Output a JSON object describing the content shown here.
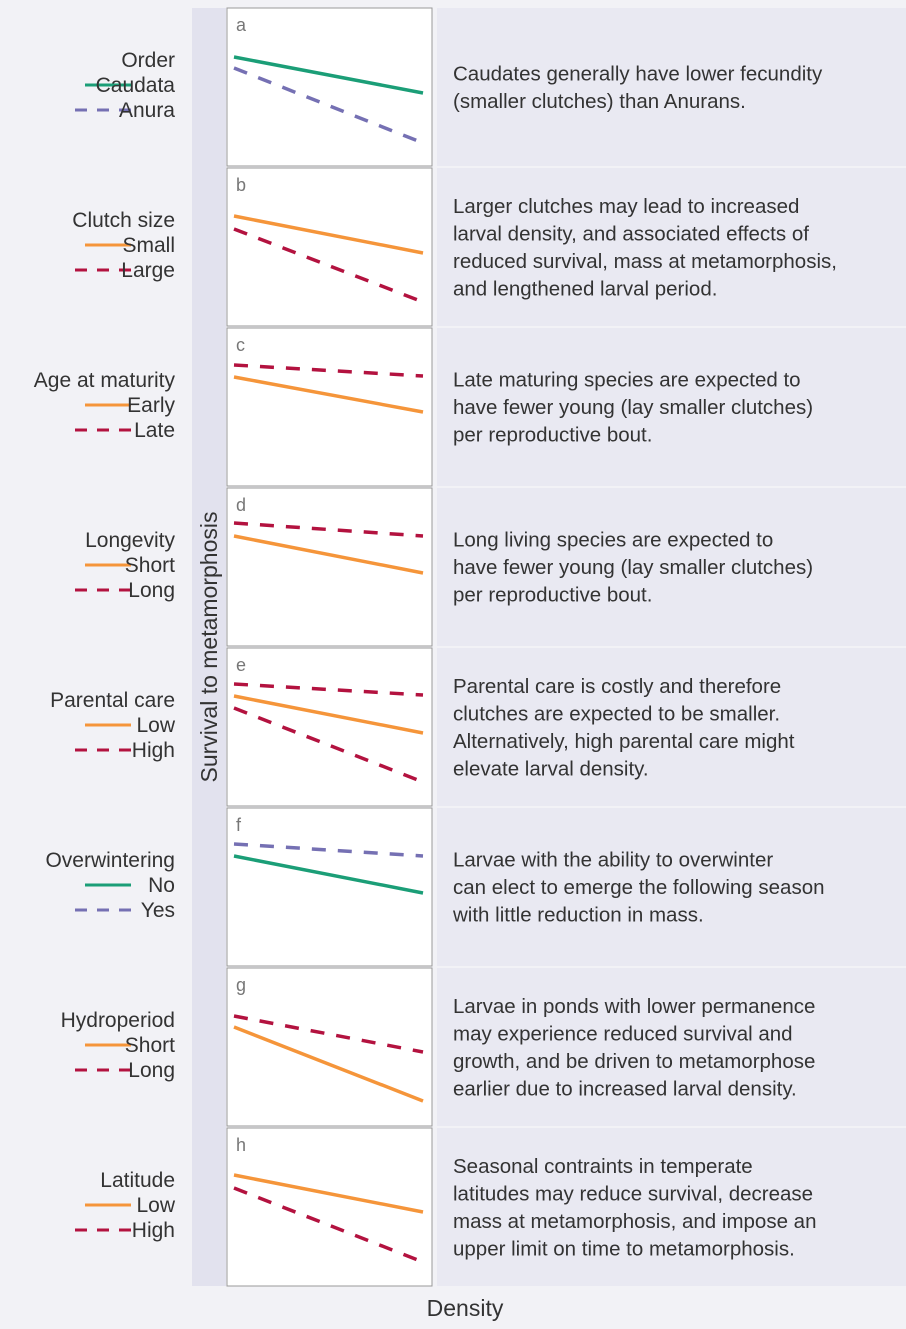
{
  "y_axis_label": "Survival to metamorphosis",
  "x_axis_label": "Density",
  "rows": [
    {
      "panel": "a",
      "factor": "Order",
      "levels": [
        {
          "name": "Caudata",
          "color": "#1b9e77"
        },
        {
          "name": "Anura",
          "color": "#7570b3"
        }
      ],
      "text": [
        "Caudates generally have lower fecundity",
        "(smaller clutches) than Anurans."
      ]
    },
    {
      "panel": "b",
      "factor": "Clutch size",
      "levels": [
        {
          "name": "Small",
          "color": "#f5953a"
        },
        {
          "name": "Large",
          "color": "#b3123f"
        }
      ],
      "text": [
        "Larger clutches may lead to increased",
        "larval density, and associated effects of",
        "reduced survival, mass at metamorphosis,",
        "and lengthened larval period."
      ]
    },
    {
      "panel": "c",
      "factor": "Age at maturity",
      "levels": [
        {
          "name": "Early",
          "color": "#f5953a"
        },
        {
          "name": "Late",
          "color": "#b3123f"
        }
      ],
      "text": [
        "Late maturing species are expected to",
        "have fewer young (lay smaller clutches)",
        "per reproductive bout."
      ]
    },
    {
      "panel": "d",
      "factor": "Longevity",
      "levels": [
        {
          "name": "Short",
          "color": "#f5953a"
        },
        {
          "name": "Long",
          "color": "#b3123f"
        }
      ],
      "text": [
        "Long living species are expected to",
        "have fewer young (lay smaller clutches)",
        "per reproductive bout."
      ]
    },
    {
      "panel": "e",
      "factor": "Parental care",
      "levels": [
        {
          "name": "Low",
          "color": "#f5953a"
        },
        {
          "name": "High",
          "color": "#b3123f"
        }
      ],
      "text": [
        "Parental care is costly and therefore",
        "clutches are expected to be smaller.",
        "Alternatively, high parental care might",
        "elevate larval density."
      ]
    },
    {
      "panel": "f",
      "factor": "Overwintering",
      "levels": [
        {
          "name": "No",
          "color": "#1b9e77"
        },
        {
          "name": "Yes",
          "color": "#7570b3"
        }
      ],
      "text": [
        "Larvae with the ability to overwinter",
        "can elect to emerge the following season",
        "with little reduction in mass."
      ]
    },
    {
      "panel": "g",
      "factor": "Hydroperiod",
      "levels": [
        {
          "name": "Short",
          "color": "#f5953a"
        },
        {
          "name": "Long",
          "color": "#b3123f"
        }
      ],
      "text": [
        "Larvae in ponds with lower permanence",
        "may experience reduced survival and",
        "growth, and be driven to metamorphose",
        "earlier due to increased larval density."
      ]
    },
    {
      "panel": "h",
      "factor": "Latitude",
      "levels": [
        {
          "name": "Low",
          "color": "#f5953a"
        },
        {
          "name": "High",
          "color": "#b3123f"
        }
      ],
      "text": [
        "Seasonal contraints in temperate",
        "latitudes may reduce survival, decrease",
        "mass at metamorphosis, and impose an",
        "upper limit on time to metamorphosis."
      ]
    }
  ]
}
